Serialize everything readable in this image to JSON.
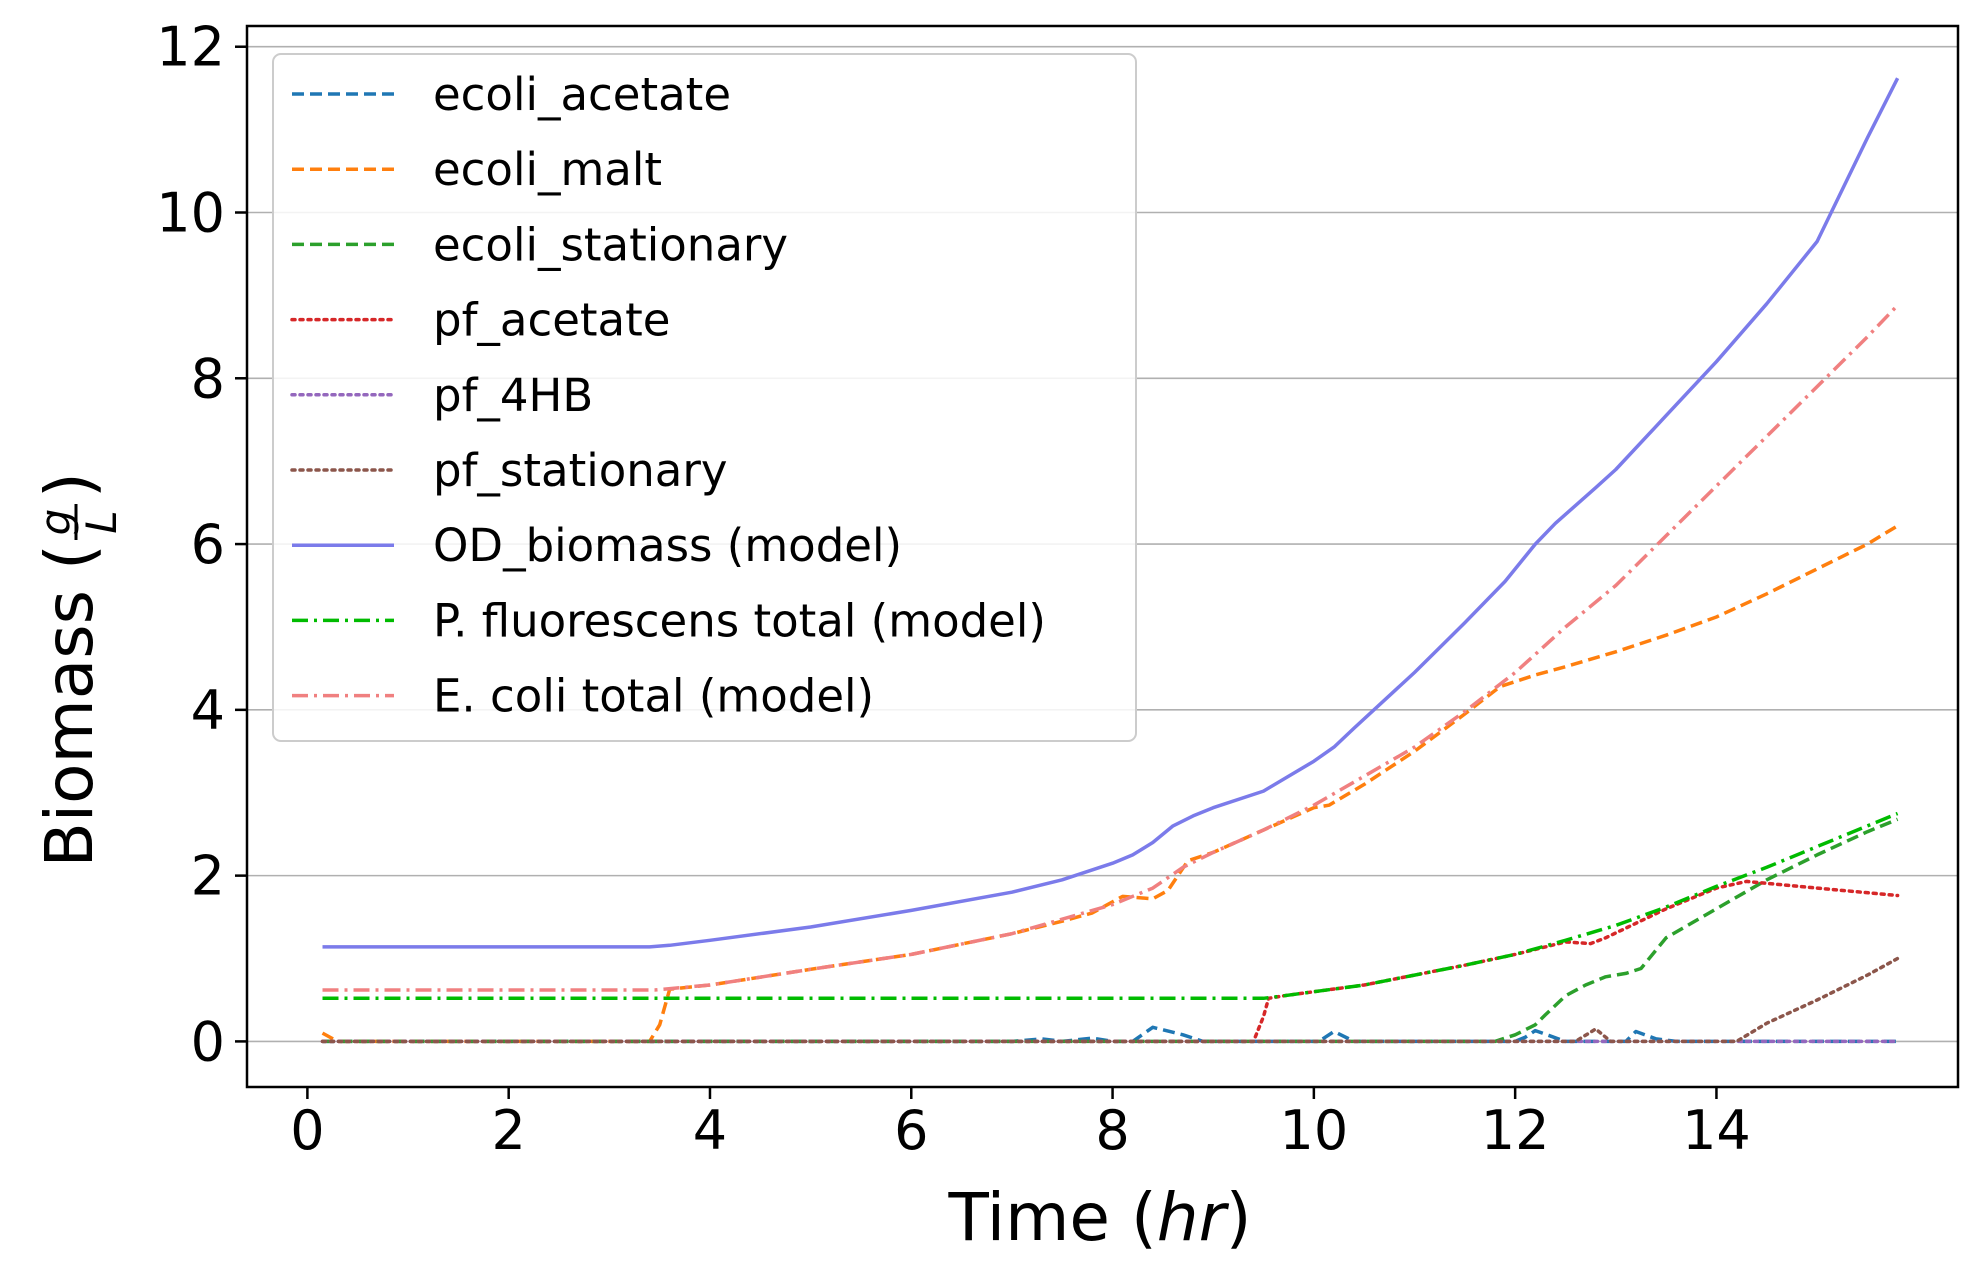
{
  "chart_data": {
    "type": "line",
    "xlabel_main": "Time (",
    "xlabel_italic": "hr",
    "xlabel_end": ")",
    "ylabel": "Biomass",
    "ylabel_frac_num": "g",
    "ylabel_frac_den": "L",
    "xlim": [
      -0.6,
      16.4
    ],
    "ylim": [
      -0.55,
      12.25
    ],
    "xticks": [
      0,
      2,
      4,
      6,
      8,
      10,
      12,
      14
    ],
    "xtick_labels": [
      "0",
      "2",
      "4",
      "6",
      "8",
      "10",
      "12",
      "14"
    ],
    "yticks": [
      0,
      2,
      4,
      6,
      8,
      10,
      12
    ],
    "ytick_labels": [
      "0",
      "2",
      "4",
      "6",
      "8",
      "10",
      "12"
    ],
    "grid": "horizontal",
    "legend_position": "top-left",
    "series": [
      {
        "name": "ecoli_acetate",
        "color": "#1f77b4",
        "style": "dashed",
        "points": [
          [
            0.15,
            0
          ],
          [
            7,
            0
          ],
          [
            7.3,
            0.03
          ],
          [
            7.5,
            0
          ],
          [
            7.8,
            0.04
          ],
          [
            8,
            0
          ],
          [
            8.2,
            0
          ],
          [
            8.4,
            0.17
          ],
          [
            8.7,
            0.08
          ],
          [
            8.9,
            0
          ],
          [
            9.5,
            0
          ],
          [
            10.05,
            0
          ],
          [
            10.2,
            0.12
          ],
          [
            10.4,
            0
          ],
          [
            12,
            0
          ],
          [
            12.1,
            0.05
          ],
          [
            12.2,
            0.13
          ],
          [
            12.5,
            0
          ],
          [
            13.1,
            0
          ],
          [
            13.2,
            0.12
          ],
          [
            13.4,
            0.03
          ],
          [
            13.6,
            0
          ],
          [
            15.8,
            0
          ]
        ]
      },
      {
        "name": "ecoli_malt",
        "color": "#ff7f0e",
        "style": "dashed",
        "points": [
          [
            0.15,
            0.1
          ],
          [
            0.3,
            0
          ],
          [
            3.4,
            0
          ],
          [
            3.5,
            0.2
          ],
          [
            3.6,
            0.63
          ],
          [
            4,
            0.68
          ],
          [
            5,
            0.87
          ],
          [
            6,
            1.05
          ],
          [
            7,
            1.3
          ],
          [
            7.5,
            1.45
          ],
          [
            7.8,
            1.55
          ],
          [
            8.1,
            1.75
          ],
          [
            8.4,
            1.72
          ],
          [
            8.55,
            1.82
          ],
          [
            8.75,
            2.18
          ],
          [
            9,
            2.28
          ],
          [
            9.5,
            2.55
          ],
          [
            10,
            2.82
          ],
          [
            10.15,
            2.85
          ],
          [
            10.5,
            3.1
          ],
          [
            11,
            3.5
          ],
          [
            11.5,
            3.95
          ],
          [
            11.85,
            4.28
          ],
          [
            12.2,
            4.42
          ],
          [
            12.5,
            4.52
          ],
          [
            13,
            4.7
          ],
          [
            13.5,
            4.9
          ],
          [
            14,
            5.12
          ],
          [
            14.5,
            5.4
          ],
          [
            15,
            5.7
          ],
          [
            15.5,
            6.0
          ],
          [
            15.8,
            6.22
          ]
        ]
      },
      {
        "name": "ecoli_stationary",
        "color": "#2ca02c",
        "style": "dashed",
        "points": [
          [
            0.15,
            0
          ],
          [
            11.8,
            0
          ],
          [
            12.0,
            0.08
          ],
          [
            12.2,
            0.2
          ],
          [
            12.3,
            0.32
          ],
          [
            12.5,
            0.55
          ],
          [
            12.7,
            0.68
          ],
          [
            12.9,
            0.78
          ],
          [
            13.1,
            0.82
          ],
          [
            13.25,
            0.88
          ],
          [
            13.5,
            1.25
          ],
          [
            14,
            1.6
          ],
          [
            14.5,
            1.95
          ],
          [
            15,
            2.25
          ],
          [
            15.5,
            2.53
          ],
          [
            15.8,
            2.68
          ]
        ]
      },
      {
        "name": "pf_acetate",
        "color": "#d62728",
        "style": "dotted",
        "points": [
          [
            0.15,
            0
          ],
          [
            9.4,
            0
          ],
          [
            9.5,
            0.3
          ],
          [
            9.55,
            0.52
          ],
          [
            9.7,
            0.55
          ],
          [
            10,
            0.6
          ],
          [
            10.5,
            0.68
          ],
          [
            11,
            0.8
          ],
          [
            11.5,
            0.92
          ],
          [
            12,
            1.05
          ],
          [
            12.5,
            1.2
          ],
          [
            12.75,
            1.18
          ],
          [
            12.9,
            1.25
          ],
          [
            13.5,
            1.6
          ],
          [
            14,
            1.85
          ],
          [
            14.3,
            1.93
          ],
          [
            15,
            1.85
          ],
          [
            15.8,
            1.76
          ]
        ]
      },
      {
        "name": "pf_4HB",
        "color": "#9467bd",
        "style": "dotted",
        "points": [
          [
            0.15,
            0
          ],
          [
            15.8,
            0
          ]
        ]
      },
      {
        "name": "pf_stationary",
        "color": "#8c564b",
        "style": "dotted",
        "points": [
          [
            0.15,
            0
          ],
          [
            12.6,
            0
          ],
          [
            12.8,
            0.15
          ],
          [
            12.95,
            0
          ],
          [
            14.2,
            0
          ],
          [
            14.5,
            0.22
          ],
          [
            15,
            0.5
          ],
          [
            15.5,
            0.8
          ],
          [
            15.8,
            1.0
          ]
        ]
      },
      {
        "name": "OD_biomass (model)",
        "color": "#7b7bea",
        "style": "solid",
        "points": [
          [
            0.15,
            1.14
          ],
          [
            3.4,
            1.14
          ],
          [
            3.6,
            1.16
          ],
          [
            4,
            1.22
          ],
          [
            5,
            1.38
          ],
          [
            6,
            1.58
          ],
          [
            7,
            1.8
          ],
          [
            7.5,
            1.95
          ],
          [
            8,
            2.15
          ],
          [
            8.2,
            2.25
          ],
          [
            8.4,
            2.4
          ],
          [
            8.6,
            2.6
          ],
          [
            8.8,
            2.72
          ],
          [
            9,
            2.82
          ],
          [
            9.5,
            3.02
          ],
          [
            10,
            3.38
          ],
          [
            10.2,
            3.55
          ],
          [
            10.4,
            3.78
          ],
          [
            11,
            4.45
          ],
          [
            11.5,
            5.05
          ],
          [
            11.9,
            5.55
          ],
          [
            12.2,
            6.0
          ],
          [
            12.4,
            6.25
          ],
          [
            12.8,
            6.68
          ],
          [
            13,
            6.9
          ],
          [
            13.5,
            7.55
          ],
          [
            14,
            8.2
          ],
          [
            14.5,
            8.9
          ],
          [
            15,
            9.65
          ],
          [
            15.5,
            10.9
          ],
          [
            15.8,
            11.62
          ]
        ]
      },
      {
        "name": "P. fluorescens total (model)",
        "color": "#00bb00",
        "style": "dashdot",
        "points": [
          [
            0.15,
            0.52
          ],
          [
            3.45,
            0.52
          ],
          [
            3.55,
            0.52
          ],
          [
            9.5,
            0.52
          ],
          [
            9.7,
            0.55
          ],
          [
            10,
            0.6
          ],
          [
            10.5,
            0.68
          ],
          [
            11,
            0.8
          ],
          [
            11.5,
            0.92
          ],
          [
            12,
            1.05
          ],
          [
            12.5,
            1.22
          ],
          [
            13,
            1.4
          ],
          [
            13.5,
            1.62
          ],
          [
            14,
            1.87
          ],
          [
            14.5,
            2.1
          ],
          [
            15,
            2.35
          ],
          [
            15.5,
            2.6
          ],
          [
            15.8,
            2.75
          ]
        ]
      },
      {
        "name": "E. coli total (model)",
        "color": "#f08080",
        "style": "dashdot",
        "points": [
          [
            0.15,
            0.62
          ],
          [
            3.45,
            0.62
          ],
          [
            4,
            0.68
          ],
          [
            5,
            0.87
          ],
          [
            6,
            1.05
          ],
          [
            7,
            1.3
          ],
          [
            8,
            1.65
          ],
          [
            8.4,
            1.85
          ],
          [
            8.7,
            2.1
          ],
          [
            9,
            2.28
          ],
          [
            9.5,
            2.55
          ],
          [
            10,
            2.85
          ],
          [
            10.5,
            3.2
          ],
          [
            11,
            3.55
          ],
          [
            11.5,
            3.98
          ],
          [
            12,
            4.45
          ],
          [
            12.5,
            5.0
          ],
          [
            13,
            5.5
          ],
          [
            13.5,
            6.1
          ],
          [
            14,
            6.7
          ],
          [
            14.5,
            7.3
          ],
          [
            15,
            7.9
          ],
          [
            15.5,
            8.5
          ],
          [
            15.8,
            8.88
          ]
        ]
      }
    ]
  }
}
